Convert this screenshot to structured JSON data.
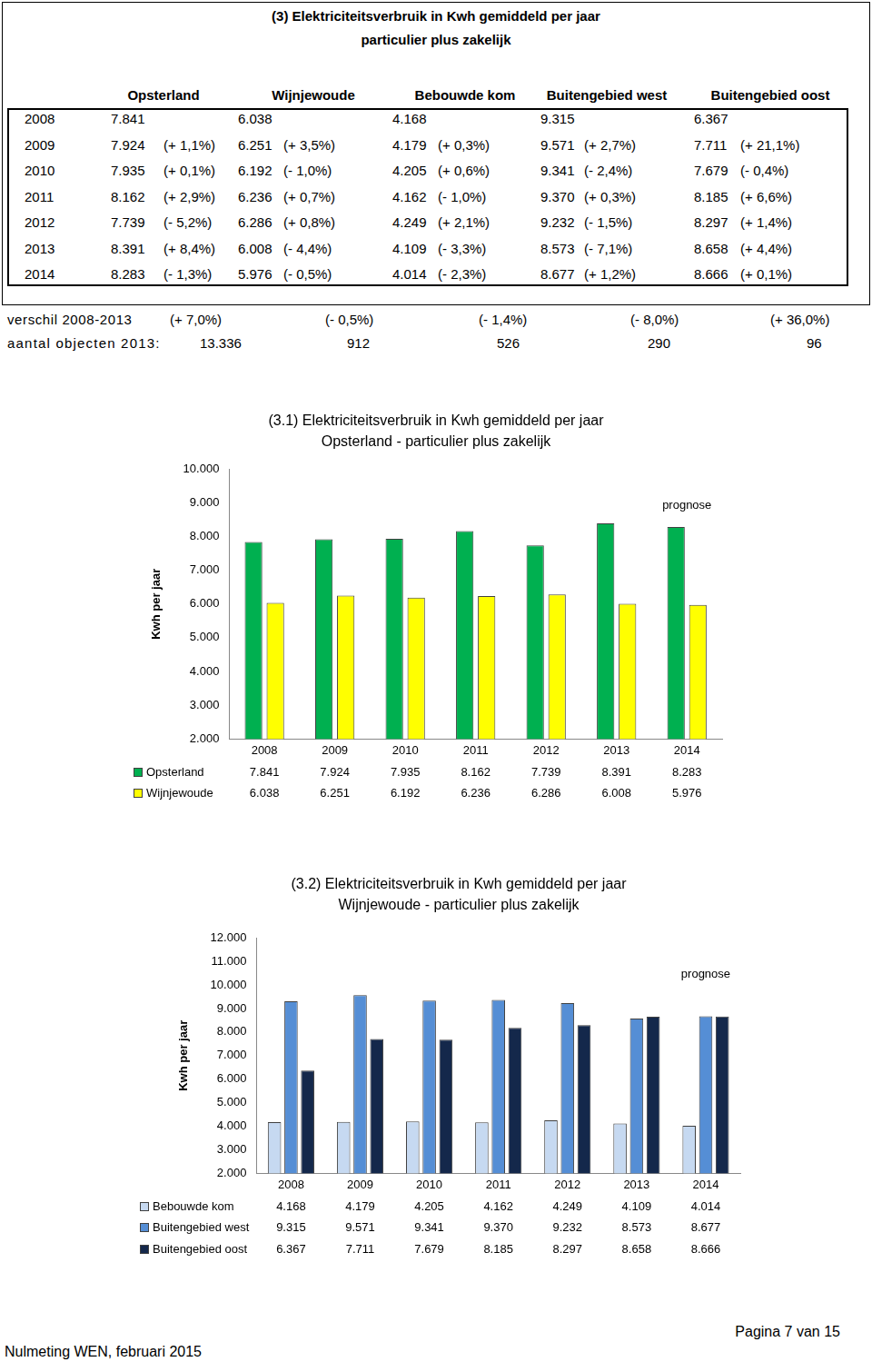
{
  "table": {
    "title": [
      "(3) Elektriciteitsverbruik in Kwh gemiddeld per jaar",
      "particulier plus zakelijk"
    ],
    "columns": [
      "Opsterland",
      "Wijnjewoude",
      "Bebouwde kom",
      "Buitengebied west",
      "Buitengebied oost"
    ],
    "rows": [
      [
        "2008",
        "7.841",
        null,
        "6.038",
        null,
        "4.168",
        null,
        "9.315",
        null,
        "6.367",
        null
      ],
      [
        "2009",
        "7.924",
        "(+ 1,1%)",
        "6.251",
        "(+ 3,5%)",
        "4.179",
        "(+ 0,3%)",
        "9.571",
        "(+ 2,7%)",
        "7.711",
        "(+ 21,1%)"
      ],
      [
        "2010",
        "7.935",
        "(+ 0,1%)",
        "6.192",
        "(- 1,0%)",
        "4.205",
        "(+ 0,6%)",
        "9.341",
        "(- 2,4%)",
        "7.679",
        "(- 0,4%)"
      ],
      [
        "2011",
        "8.162",
        "(+ 2,9%)",
        "6.236",
        "(+ 0,7%)",
        "4.162",
        "(- 1,0%)",
        "9.370",
        "(+ 0,3%)",
        "8.185",
        "(+ 6,6%)"
      ],
      [
        "2012",
        "7.739",
        "(- 5,2%)",
        "6.286",
        "(+ 0,8%)",
        "4.249",
        "(+ 2,1%)",
        "9.232",
        "(- 1,5%)",
        "8.297",
        "(+ 1,4%)"
      ],
      [
        "2013",
        "8.391",
        "(+ 8,4%)",
        "6.008",
        "(- 4,4%)",
        "4.109",
        "(- 3,3%)",
        "8.573",
        "(- 7,1%)",
        "8.658",
        "(+ 4,4%)"
      ],
      [
        "2014",
        "8.283",
        "(- 1,3%)",
        "5.976",
        "(- 0,5%)",
        "4.014",
        "(- 2,3%)",
        "8.677",
        "(+ 1,2%)",
        "8.666",
        "(+ 0,1%)"
      ]
    ],
    "summary": [
      [
        "verschil 2008-2013",
        "(+ 7,0%)",
        "(- 0,5%)",
        "(- 1,4%)",
        "(- 8,0%)",
        "(+ 36,0%)"
      ],
      [
        "aantal objecten 2013:",
        "13.336",
        "912",
        "526",
        "290",
        "96"
      ]
    ]
  },
  "chart_data": [
    {
      "type": "bar",
      "title": "(3.1) Elektriciteitsverbruik in Kwh gemiddeld per jaar",
      "subtitle": "Opsterland - particulier plus zakelijk",
      "y_label": "Kwh per jaar",
      "annotations": [
        "prognose"
      ],
      "categories": [
        "2008",
        "2009",
        "2010",
        "2011",
        "2012",
        "2013",
        "2014"
      ],
      "series": [
        {
          "name": "Opsterland",
          "color": "#00b050",
          "values": [
            7841,
            7924,
            7935,
            8162,
            7739,
            8391,
            8283
          ],
          "value_labels": [
            "7.841",
            "7.924",
            "7.935",
            "8.162",
            "7.739",
            "8.391",
            "8.283"
          ]
        },
        {
          "name": "Wijnjewoude",
          "color": "#ffff00",
          "values": [
            6038,
            6251,
            6192,
            6236,
            6286,
            6008,
            5976
          ],
          "value_labels": [
            "6.038",
            "6.251",
            "6.192",
            "6.236",
            "6.286",
            "6.008",
            "5.976"
          ]
        }
      ],
      "ylim": [
        2000,
        10000
      ],
      "yticks": [
        {
          "value": 2000,
          "label": "2.000"
        },
        {
          "value": 3000,
          "label": "3.000"
        },
        {
          "value": 4000,
          "label": "4.000"
        },
        {
          "value": 5000,
          "label": "5.000"
        },
        {
          "value": 6000,
          "label": "6.000"
        },
        {
          "value": 7000,
          "label": "7.000"
        },
        {
          "value": 8000,
          "label": "8.000"
        },
        {
          "value": 9000,
          "label": "9.000"
        },
        {
          "value": 10000,
          "label": "10.000"
        }
      ],
      "grid": false
    },
    {
      "type": "bar",
      "title": "(3.2) Elektriciteitsverbruik in Kwh gemiddeld per jaar",
      "subtitle": "Wijnjewoude - particulier plus zakelijk",
      "y_label": "Kwh per jaar",
      "annotations": [
        "prognose"
      ],
      "categories": [
        "2008",
        "2009",
        "2010",
        "2011",
        "2012",
        "2013",
        "2014"
      ],
      "series": [
        {
          "name": "Bebouwde kom",
          "color": "#c6d9f1",
          "values": [
            4168,
            4179,
            4205,
            4162,
            4249,
            4109,
            4014
          ],
          "value_labels": [
            "4.168",
            "4.179",
            "4.205",
            "4.162",
            "4.249",
            "4.109",
            "4.014"
          ]
        },
        {
          "name": "Buitengebied west",
          "color": "#558ed5",
          "values": [
            9315,
            9571,
            9341,
            9370,
            9232,
            8573,
            8677
          ],
          "value_labels": [
            "9.315",
            "9.571",
            "9.341",
            "9.370",
            "9.232",
            "8.573",
            "8.677"
          ]
        },
        {
          "name": "Buitengebied oost",
          "color": "#14284b",
          "values": [
            6367,
            7711,
            7679,
            8185,
            8297,
            8658,
            8666
          ],
          "value_labels": [
            "6.367",
            "7.711",
            "7.679",
            "8.185",
            "8.297",
            "8.658",
            "8.666"
          ]
        }
      ],
      "ylim": [
        2000,
        12000
      ],
      "yticks": [
        {
          "value": 2000,
          "label": "2.000"
        },
        {
          "value": 3000,
          "label": "3.000"
        },
        {
          "value": 4000,
          "label": "4.000"
        },
        {
          "value": 5000,
          "label": "5.000"
        },
        {
          "value": 6000,
          "label": "6.000"
        },
        {
          "value": 7000,
          "label": "7.000"
        },
        {
          "value": 8000,
          "label": "8.000"
        },
        {
          "value": 9000,
          "label": "9.000"
        },
        {
          "value": 10000,
          "label": "10.000"
        },
        {
          "value": 11000,
          "label": "11.000"
        },
        {
          "value": 12000,
          "label": "12.000"
        }
      ],
      "grid": false
    }
  ],
  "footer": {
    "left": "Nulmeting WEN, februari 2015",
    "right": "Pagina 7 van 15"
  }
}
